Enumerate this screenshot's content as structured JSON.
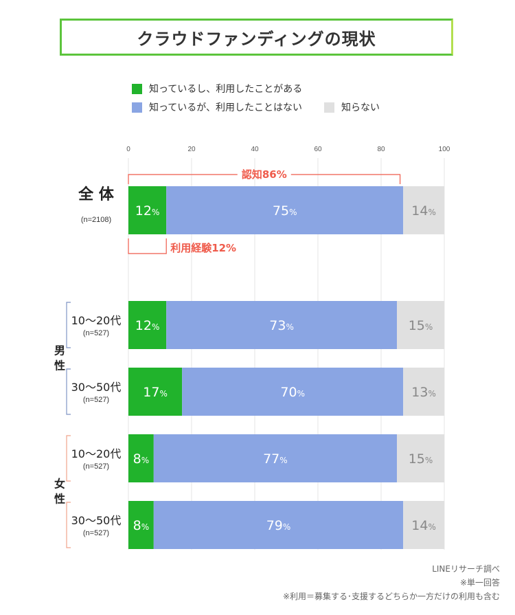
{
  "title": "クラウドファンディングの現状",
  "legend": [
    {
      "label": "知っているし、利用したことがある",
      "color": "#21b32c"
    },
    {
      "label": "知っているが、利用したことはない",
      "color": "#8aa5e3"
    },
    {
      "label": "知らない",
      "color": "#e0e0e0"
    }
  ],
  "chart_data": {
    "type": "bar",
    "orientation": "horizontal",
    "stacked": true,
    "xlim": [
      0,
      100
    ],
    "x_ticks": [
      "0",
      "20",
      "40",
      "60",
      "80",
      "100"
    ],
    "categories": [
      "全 体",
      "10〜20代",
      "30〜50代",
      "10〜20代",
      "30〜50代"
    ],
    "category_notes": [
      "(n=2108)",
      "(n=527)",
      "(n=527)",
      "(n=527)",
      "(n=527)"
    ],
    "groups": [
      {
        "label": "男\n性",
        "members": [
          1,
          2
        ],
        "color": "#7f95c4"
      },
      {
        "label": "女\n性",
        "members": [
          3,
          4
        ],
        "color": "#f0a38c"
      }
    ],
    "series": [
      {
        "name": "知っているし、利用したことがある",
        "values": [
          12,
          12,
          17,
          8,
          8
        ],
        "labels": [
          "12",
          "12",
          "17",
          "8",
          "8"
        ]
      },
      {
        "name": "知っているが、利用したことはない",
        "values": [
          75,
          73,
          70,
          77,
          79
        ],
        "labels": [
          "75",
          "73",
          "70",
          "77",
          "79"
        ]
      },
      {
        "name": "知らない",
        "values": [
          14,
          15,
          13,
          15,
          14
        ],
        "labels": [
          "14",
          "15",
          "13",
          "15",
          "14"
        ]
      }
    ],
    "value_suffix": "%",
    "annotations": [
      {
        "text": "認知86%",
        "from": 0,
        "to": 86,
        "row": 0,
        "position": "above"
      },
      {
        "text": "利用経験12%",
        "from": 0,
        "to": 12,
        "row": 0,
        "position": "below"
      }
    ],
    "annotation_color": "#ef5b4b"
  },
  "notes": [
    "LINEリサーチ調べ",
    "※単一回答",
    "※利用＝募集する･支援するどちらか一方だけの利用も含む"
  ]
}
